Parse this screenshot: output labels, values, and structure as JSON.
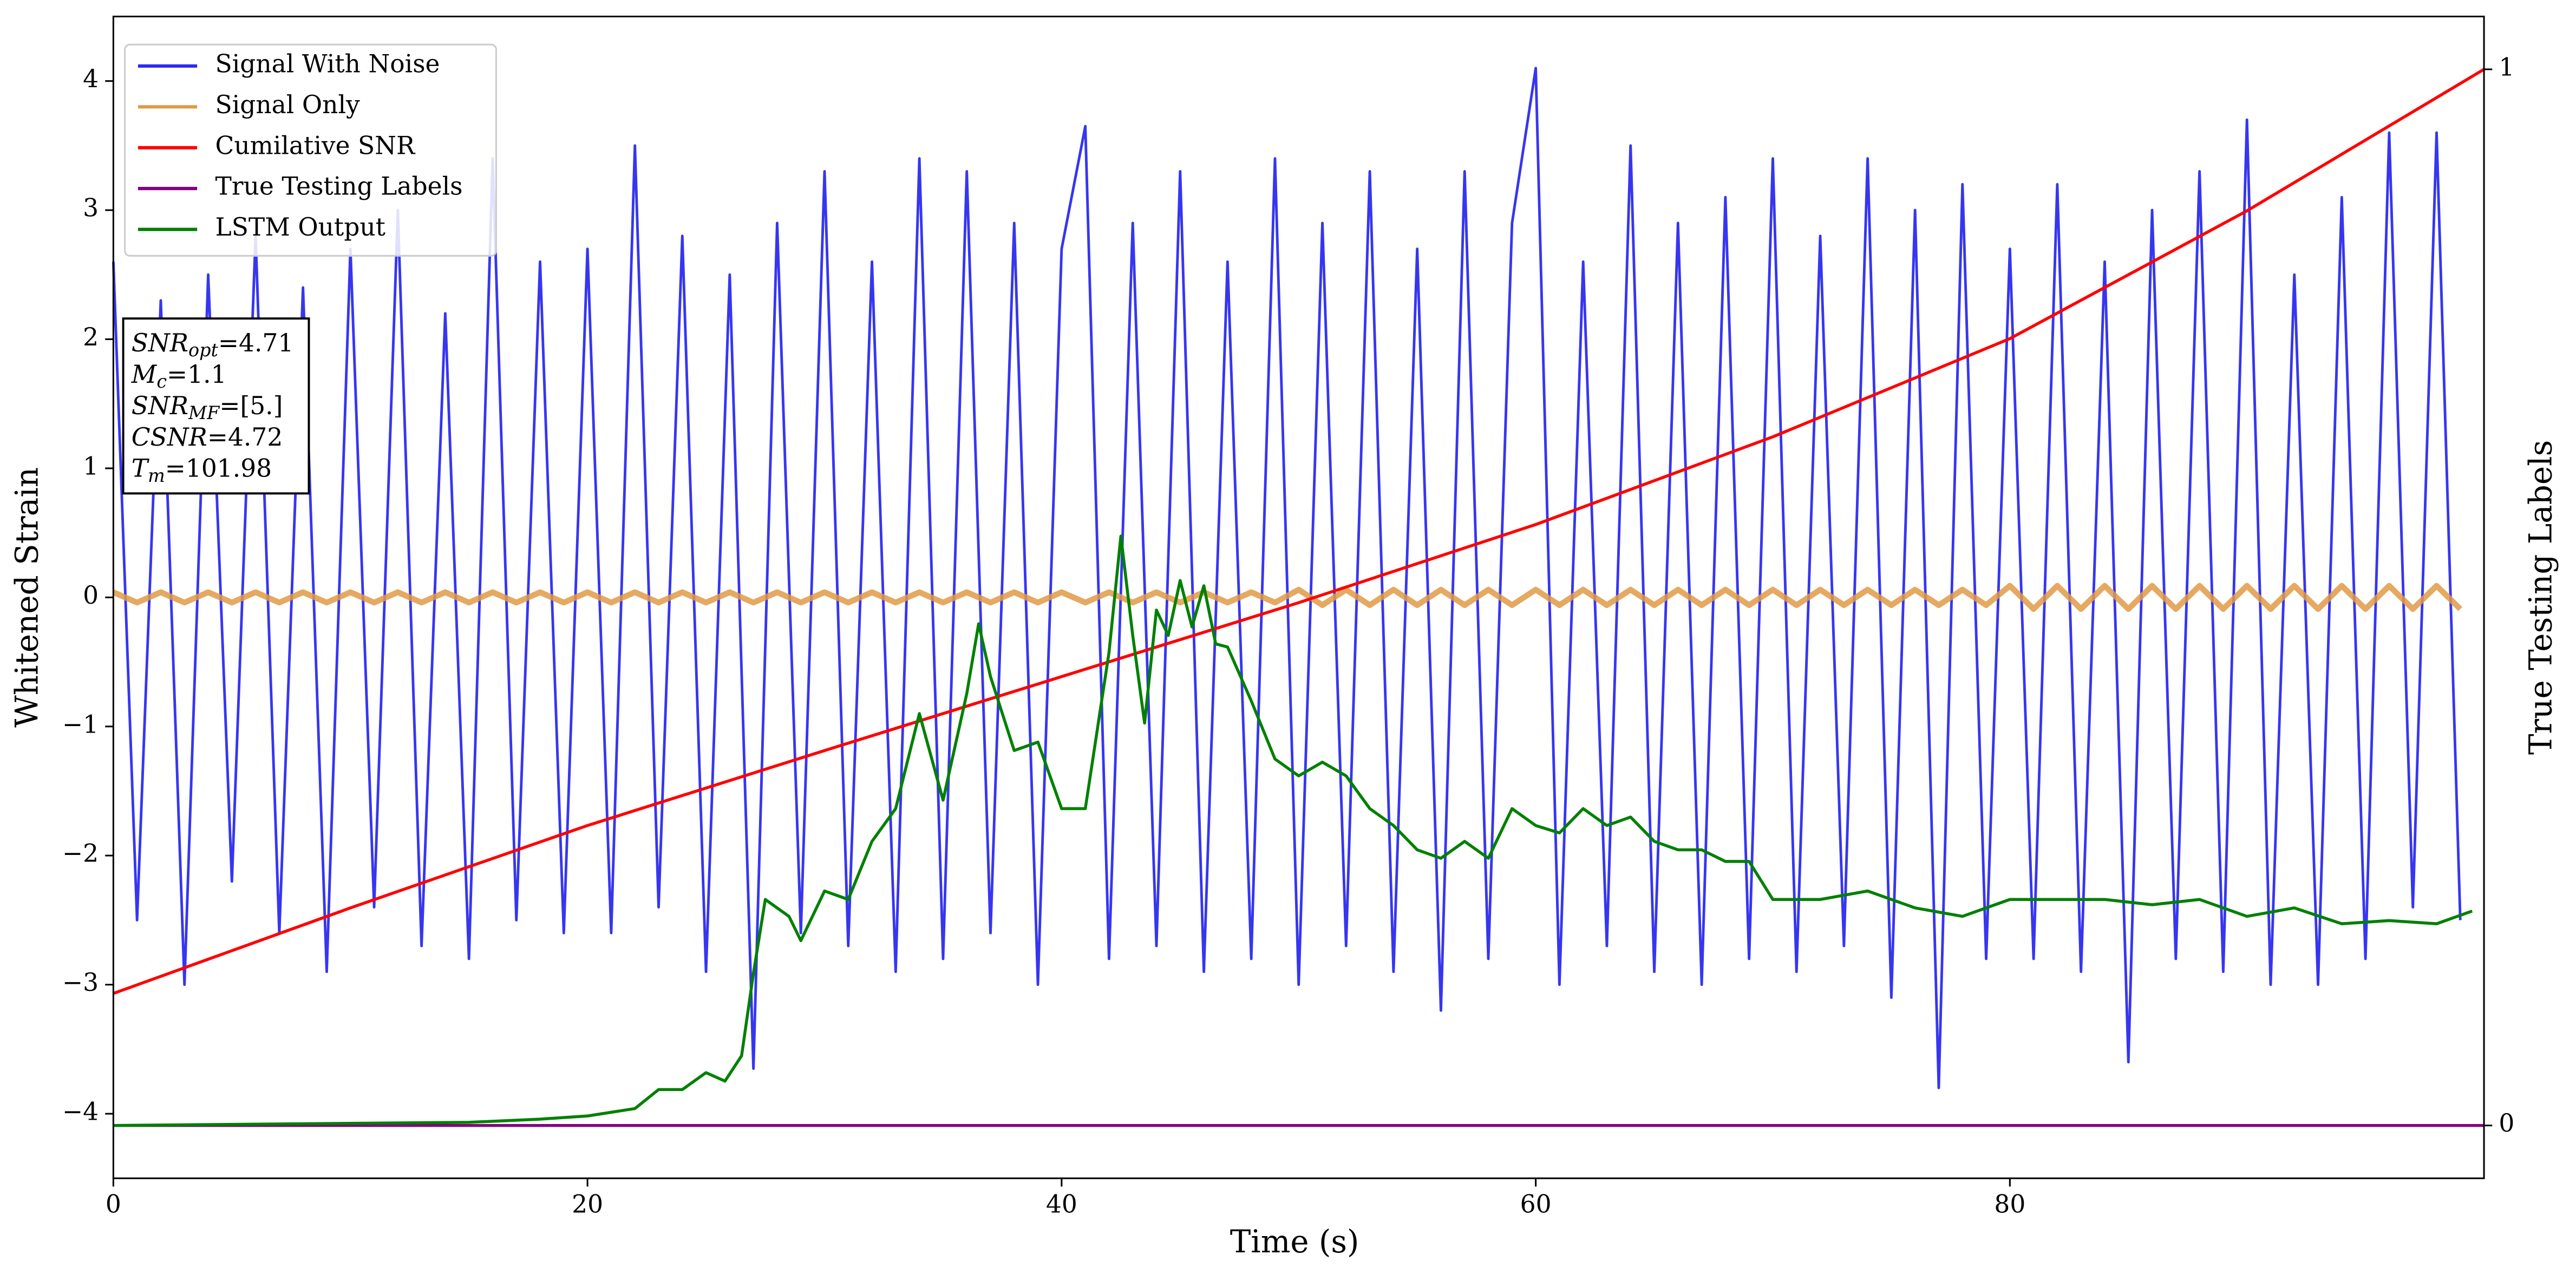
{
  "chart_data": {
    "type": "line",
    "xlabel": "Time (s)",
    "ylabel": "Whitened Strain",
    "y2label": "True Testing Labels",
    "xlim": [
      0,
      100
    ],
    "xticks": [
      0,
      20,
      40,
      60,
      80
    ],
    "ylim": [
      -4.5,
      4.5
    ],
    "yticks": [
      {
        "value": -4,
        "label": "−4"
      },
      {
        "value": -3,
        "label": "−3"
      },
      {
        "value": -2,
        "label": "−2"
      },
      {
        "value": -1,
        "label": "−1"
      },
      0,
      1,
      2,
      3,
      4
    ],
    "y2lim": [
      -0.05,
      1.05
    ],
    "y2ticks": [
      0,
      1
    ],
    "legend": "upper left",
    "series": [
      {
        "name": "Signal With Noise",
        "color": "#2b2bf0",
        "x": [
          0,
          1,
          2,
          3,
          4,
          5,
          6,
          7,
          8,
          9,
          10,
          11,
          12,
          13,
          14,
          15,
          16,
          17,
          18,
          19,
          20,
          21,
          22,
          23,
          24,
          25,
          26,
          27,
          28,
          29,
          30,
          31,
          32,
          33,
          34,
          35,
          36,
          37,
          38,
          39,
          40,
          41,
          42,
          43,
          44,
          45,
          46,
          47,
          48,
          49,
          50,
          51,
          52,
          53,
          54,
          55,
          56,
          57,
          58,
          59,
          60,
          61,
          62,
          63,
          64,
          65,
          66,
          67,
          68,
          69,
          70,
          71,
          72,
          73,
          74,
          75,
          76,
          77,
          78,
          79,
          80,
          81,
          82,
          83,
          84,
          85,
          86,
          87,
          88,
          89,
          90,
          91,
          92,
          93,
          94,
          95,
          96,
          97,
          98,
          99
        ],
        "values": [
          2.6,
          -2.5,
          2.3,
          -3.0,
          2.5,
          -2.2,
          2.8,
          -2.6,
          2.4,
          -2.9,
          2.7,
          -2.4,
          3.0,
          -2.7,
          2.2,
          -2.8,
          3.4,
          -2.5,
          2.6,
          -2.6,
          2.7,
          -2.6,
          3.5,
          -2.4,
          2.8,
          -2.9,
          2.5,
          -3.65,
          2.9,
          -2.6,
          3.3,
          -2.7,
          2.6,
          -2.9,
          3.4,
          -2.8,
          3.3,
          -2.6,
          2.9,
          -3.0,
          2.7,
          3.65,
          -2.8,
          2.9,
          -2.7,
          3.3,
          -2.9,
          2.6,
          -2.8,
          3.4,
          -3.0,
          2.9,
          -2.7,
          3.3,
          -2.9,
          2.7,
          -3.2,
          3.3,
          -2.8,
          2.9,
          4.1,
          -3.0,
          2.6,
          -2.7,
          3.5,
          -2.9,
          2.9,
          -3.0,
          3.1,
          -2.8,
          3.4,
          -2.9,
          2.8,
          -2.7,
          3.4,
          -3.1,
          3.0,
          -3.8,
          3.2,
          -2.8,
          2.7,
          -2.8,
          3.2,
          -2.9,
          2.6,
          -3.6,
          3.0,
          -2.8,
          3.3,
          -2.9,
          3.7,
          -3.0,
          2.5,
          -3.0,
          3.1,
          -2.8,
          3.6,
          -2.4,
          3.6,
          -2.5
        ]
      },
      {
        "name": "Signal Only",
        "color": "#e09a45",
        "x": [
          0,
          1,
          2,
          3,
          4,
          5,
          6,
          7,
          8,
          9,
          10,
          11,
          12,
          13,
          14,
          15,
          16,
          17,
          18,
          19,
          20,
          21,
          22,
          23,
          24,
          25,
          26,
          27,
          28,
          29,
          30,
          31,
          32,
          33,
          34,
          35,
          36,
          37,
          38,
          39,
          40,
          41,
          42,
          43,
          44,
          45,
          46,
          47,
          48,
          49,
          50,
          51,
          52,
          53,
          54,
          55,
          56,
          57,
          58,
          59,
          60,
          61,
          62,
          63,
          64,
          65,
          66,
          67,
          68,
          69,
          70,
          71,
          72,
          73,
          74,
          75,
          76,
          77,
          78,
          79,
          80,
          81,
          82,
          83,
          84,
          85,
          86,
          87,
          88,
          89,
          90,
          91,
          92,
          93,
          94,
          95,
          96,
          97,
          98,
          99
        ],
        "values": [
          0.04,
          -0.04,
          0.04,
          -0.04,
          0.04,
          -0.04,
          0.04,
          -0.04,
          0.04,
          -0.04,
          0.04,
          -0.04,
          0.04,
          -0.04,
          0.04,
          -0.04,
          0.04,
          -0.04,
          0.04,
          -0.04,
          0.04,
          -0.04,
          0.04,
          -0.04,
          0.04,
          -0.04,
          0.04,
          -0.04,
          0.04,
          -0.04,
          0.04,
          -0.04,
          0.04,
          -0.04,
          0.04,
          -0.04,
          0.04,
          -0.04,
          0.04,
          -0.04,
          0.04,
          -0.04,
          0.04,
          -0.04,
          0.04,
          -0.04,
          0.04,
          -0.04,
          0.04,
          -0.04,
          0.06,
          -0.06,
          0.06,
          -0.06,
          0.06,
          -0.06,
          0.06,
          -0.06,
          0.06,
          -0.06,
          0.06,
          -0.06,
          0.06,
          -0.06,
          0.06,
          -0.06,
          0.06,
          -0.06,
          0.06,
          -0.06,
          0.06,
          -0.06,
          0.06,
          -0.06,
          0.06,
          -0.06,
          0.06,
          -0.06,
          0.06,
          -0.06,
          0.09,
          -0.09,
          0.09,
          -0.09,
          0.09,
          -0.09,
          0.09,
          -0.09,
          0.09,
          -0.09,
          0.09,
          -0.09,
          0.09,
          -0.09,
          0.09,
          -0.09,
          0.09,
          -0.09,
          0.09,
          -0.09
        ]
      },
      {
        "name": "Cumilative SNR",
        "color": "#ff0000",
        "axis": "y2",
        "x": [
          0,
          10,
          20,
          30,
          40,
          50,
          60,
          70,
          80,
          90,
          100
        ],
        "values": [
          0.125,
          0.206,
          0.284,
          0.355,
          0.425,
          0.495,
          0.569,
          0.652,
          0.745,
          0.866,
          1.0
        ]
      },
      {
        "name": "True Testing Labels",
        "color": "#800080",
        "axis": "y2",
        "x": [
          0,
          100
        ],
        "values": [
          0,
          0
        ]
      },
      {
        "name": "LSTM Output",
        "color": "#008000",
        "axis": "y2",
        "x": [
          0,
          15,
          18,
          20,
          22,
          23,
          24,
          25,
          25.8,
          26.5,
          27,
          27.5,
          28.5,
          29,
          30,
          31,
          32,
          33,
          34,
          35,
          36,
          36.5,
          37,
          38,
          39,
          40,
          41,
          42,
          42.5,
          43,
          43.5,
          44,
          44.5,
          45,
          45.5,
          46,
          46.5,
          47,
          48,
          49,
          50,
          51,
          52,
          53,
          54,
          55,
          56,
          57,
          58,
          59,
          60,
          61,
          62,
          63,
          64,
          65,
          66,
          67,
          68,
          69,
          70,
          72,
          74,
          76,
          78,
          80,
          82,
          84,
          86,
          88,
          90,
          92,
          94,
          96,
          98,
          99.5
        ],
        "values": [
          0,
          0.003,
          0.006,
          0.009,
          0.016,
          0.034,
          0.034,
          0.05,
          0.042,
          0.066,
          0.144,
          0.214,
          0.198,
          0.175,
          0.222,
          0.214,
          0.269,
          0.3,
          0.39,
          0.308,
          0.409,
          0.475,
          0.425,
          0.355,
          0.363,
          0.3,
          0.3,
          0.448,
          0.558,
          0.464,
          0.381,
          0.488,
          0.464,
          0.516,
          0.472,
          0.511,
          0.456,
          0.453,
          0.402,
          0.347,
          0.331,
          0.344,
          0.331,
          0.3,
          0.284,
          0.261,
          0.253,
          0.269,
          0.253,
          0.3,
          0.284,
          0.277,
          0.3,
          0.284,
          0.292,
          0.269,
          0.261,
          0.261,
          0.25,
          0.25,
          0.214,
          0.214,
          0.222,
          0.206,
          0.198,
          0.214,
          0.214,
          0.214,
          0.209,
          0.214,
          0.198,
          0.206,
          0.191,
          0.194,
          0.191,
          0.203
        ]
      }
    ],
    "annotation": [
      {
        "symbol": "SNR",
        "subscript": "opt",
        "text": "=4.71"
      },
      {
        "symbol": "M",
        "subscript": "c",
        "text": "=1.1"
      },
      {
        "symbol": "SNR",
        "subscript": "MF",
        "text": "=[5.]"
      },
      {
        "symbol": "CSNR",
        "subscript": null,
        "text": "=4.72"
      },
      {
        "symbol": "T",
        "subscript": "m",
        "text": "=101.98"
      }
    ]
  }
}
